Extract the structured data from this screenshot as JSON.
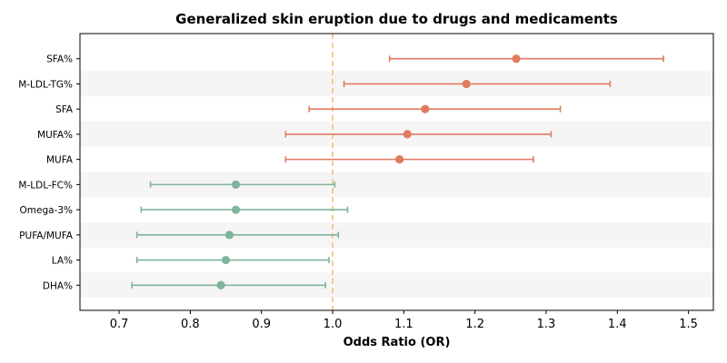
{
  "chart_data": {
    "type": "forest",
    "title": "Generalized skin eruption due to drugs and medicaments",
    "xlabel": "Odds Ratio (OR)",
    "ylabel": "",
    "xlim": [
      0.645,
      1.535
    ],
    "xticks": [
      "0.7",
      "0.8",
      "0.9",
      "1.0",
      "1.1",
      "1.2",
      "1.3",
      "1.4",
      "1.5"
    ],
    "reference_line": 1.0,
    "alternating_row_shading": true,
    "grid": false,
    "colors": {
      "positive": "#e07b5f",
      "negative": "#7fb59b",
      "reference_line": "#f2c27f",
      "row_shade": "#f5f5f5"
    },
    "rows": [
      {
        "label": "SFA%",
        "or": 1.258,
        "lower": 1.08,
        "upper": 1.465
      },
      {
        "label": "M-LDL-TG%",
        "or": 1.188,
        "lower": 1.016,
        "upper": 1.39
      },
      {
        "label": "SFA",
        "or": 1.13,
        "lower": 0.967,
        "upper": 1.32
      },
      {
        "label": "MUFA%",
        "or": 1.105,
        "lower": 0.934,
        "upper": 1.307
      },
      {
        "label": "MUFA",
        "or": 1.094,
        "lower": 0.934,
        "upper": 1.282
      },
      {
        "label": "M-LDL-FC%",
        "or": 0.864,
        "lower": 0.744,
        "upper": 1.003
      },
      {
        "label": "Omega-3%",
        "or": 0.864,
        "lower": 0.731,
        "upper": 1.021
      },
      {
        "label": "PUFA/MUFA",
        "or": 0.855,
        "lower": 0.725,
        "upper": 1.008
      },
      {
        "label": "LA%",
        "or": 0.85,
        "lower": 0.725,
        "upper": 0.995
      },
      {
        "label": "DHA%",
        "or": 0.843,
        "lower": 0.718,
        "upper": 0.99
      }
    ]
  }
}
